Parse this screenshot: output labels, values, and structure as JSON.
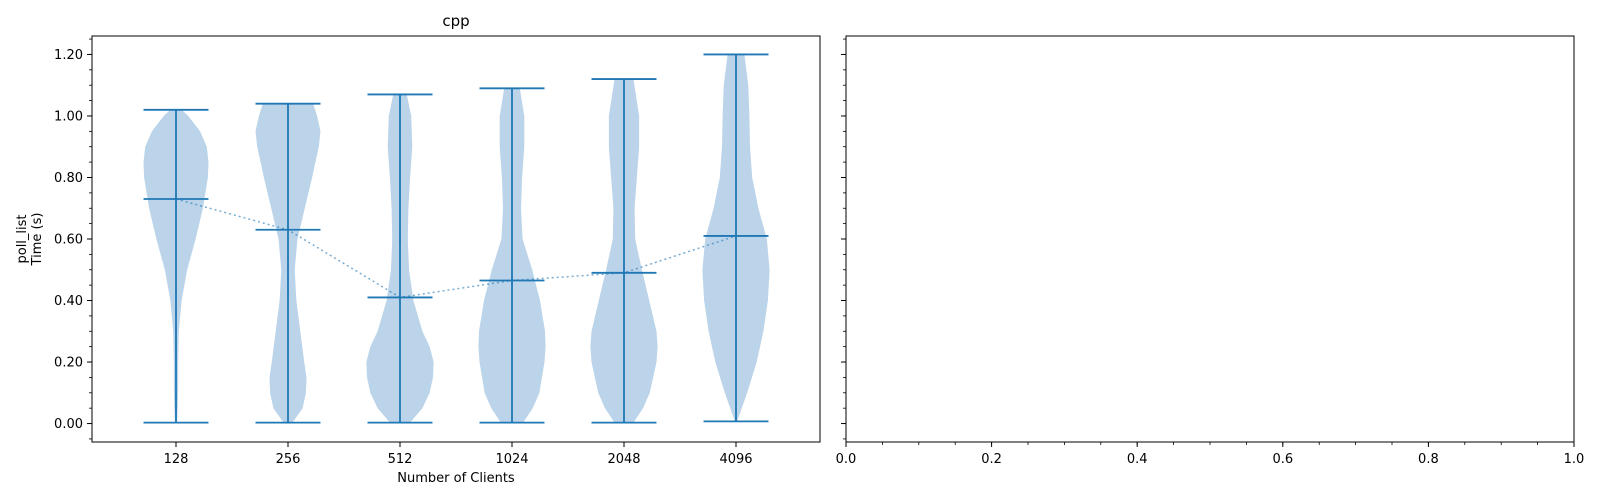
{
  "chart_data": [
    {
      "type": "violin",
      "title": "cpp",
      "xlabel": "Number of Clients",
      "ylabel_lines": [
        "poll_list",
        "Time (s)"
      ],
      "categories": [
        "128",
        "256",
        "512",
        "1024",
        "2048",
        "4096"
      ],
      "ylim": [
        -0.06,
        1.26
      ],
      "yticks": [
        "0.00",
        "0.20",
        "0.40",
        "0.60",
        "0.80",
        "1.00",
        "1.20"
      ],
      "ytick_values": [
        0.0,
        0.2,
        0.4,
        0.6,
        0.8,
        1.0,
        1.2
      ],
      "minor_ytick_step": 0.05,
      "grid": false,
      "violin_color": "#9ec2e0",
      "line_color": "#1f77b4",
      "median_line_style": "dotted",
      "series": [
        {
          "category": "128",
          "min": 0.003,
          "max": 1.02,
          "median": 0.73,
          "density": [
            [
              0.003,
              0.02
            ],
            [
              0.05,
              0.03
            ],
            [
              0.12,
              0.04
            ],
            [
              0.2,
              0.04
            ],
            [
              0.3,
              0.05
            ],
            [
              0.4,
              0.1
            ],
            [
              0.5,
              0.2
            ],
            [
              0.6,
              0.35
            ],
            [
              0.7,
              0.48
            ],
            [
              0.8,
              0.57
            ],
            [
              0.85,
              0.58
            ],
            [
              0.9,
              0.55
            ],
            [
              0.95,
              0.43
            ],
            [
              1.0,
              0.22
            ],
            [
              1.02,
              0.1
            ]
          ]
        },
        {
          "category": "256",
          "min": 0.003,
          "max": 1.04,
          "median": 0.63,
          "density": [
            [
              0.003,
              0.08
            ],
            [
              0.05,
              0.26
            ],
            [
              0.1,
              0.32
            ],
            [
              0.15,
              0.33
            ],
            [
              0.2,
              0.29
            ],
            [
              0.3,
              0.22
            ],
            [
              0.4,
              0.15
            ],
            [
              0.5,
              0.12
            ],
            [
              0.6,
              0.17
            ],
            [
              0.7,
              0.3
            ],
            [
              0.8,
              0.43
            ],
            [
              0.9,
              0.55
            ],
            [
              0.95,
              0.58
            ],
            [
              1.0,
              0.52
            ],
            [
              1.04,
              0.45
            ]
          ]
        },
        {
          "category": "512",
          "min": 0.003,
          "max": 1.07,
          "median": 0.41,
          "density": [
            [
              0.003,
              0.18
            ],
            [
              0.05,
              0.4
            ],
            [
              0.1,
              0.53
            ],
            [
              0.15,
              0.59
            ],
            [
              0.2,
              0.6
            ],
            [
              0.25,
              0.53
            ],
            [
              0.3,
              0.4
            ],
            [
              0.4,
              0.24
            ],
            [
              0.5,
              0.16
            ],
            [
              0.6,
              0.14
            ],
            [
              0.7,
              0.15
            ],
            [
              0.8,
              0.18
            ],
            [
              0.9,
              0.22
            ],
            [
              1.0,
              0.2
            ],
            [
              1.07,
              0.12
            ]
          ]
        },
        {
          "category": "1024",
          "min": 0.003,
          "max": 1.09,
          "median": 0.465,
          "density": [
            [
              0.003,
              0.2
            ],
            [
              0.05,
              0.37
            ],
            [
              0.1,
              0.49
            ],
            [
              0.2,
              0.58
            ],
            [
              0.25,
              0.6
            ],
            [
              0.3,
              0.59
            ],
            [
              0.4,
              0.5
            ],
            [
              0.5,
              0.36
            ],
            [
              0.6,
              0.19
            ],
            [
              0.7,
              0.16
            ],
            [
              0.8,
              0.18
            ],
            [
              0.9,
              0.22
            ],
            [
              1.0,
              0.22
            ],
            [
              1.09,
              0.14
            ]
          ]
        },
        {
          "category": "2048",
          "min": 0.003,
          "max": 1.12,
          "median": 0.49,
          "density": [
            [
              0.003,
              0.17
            ],
            [
              0.05,
              0.34
            ],
            [
              0.1,
              0.46
            ],
            [
              0.2,
              0.58
            ],
            [
              0.25,
              0.6
            ],
            [
              0.3,
              0.58
            ],
            [
              0.4,
              0.45
            ],
            [
              0.5,
              0.32
            ],
            [
              0.6,
              0.2
            ],
            [
              0.7,
              0.19
            ],
            [
              0.8,
              0.23
            ],
            [
              0.9,
              0.27
            ],
            [
              1.0,
              0.27
            ],
            [
              1.12,
              0.17
            ]
          ]
        },
        {
          "category": "4096",
          "min": 0.007,
          "max": 1.2,
          "median": 0.61,
          "density": [
            [
              0.007,
              0.02
            ],
            [
              0.1,
              0.2
            ],
            [
              0.2,
              0.37
            ],
            [
              0.3,
              0.49
            ],
            [
              0.4,
              0.57
            ],
            [
              0.5,
              0.6
            ],
            [
              0.6,
              0.55
            ],
            [
              0.7,
              0.4
            ],
            [
              0.8,
              0.29
            ],
            [
              0.9,
              0.25
            ],
            [
              1.0,
              0.24
            ],
            [
              1.1,
              0.22
            ],
            [
              1.2,
              0.15
            ]
          ]
        }
      ]
    },
    {
      "type": "empty",
      "title": "",
      "xlim": [
        0.0,
        1.0
      ],
      "xticks": [
        "0.0",
        "0.2",
        "0.4",
        "0.6",
        "0.8",
        "1.0"
      ],
      "xtick_values": [
        0.0,
        0.2,
        0.4,
        0.6,
        0.8,
        1.0
      ],
      "shared_y": true
    }
  ]
}
